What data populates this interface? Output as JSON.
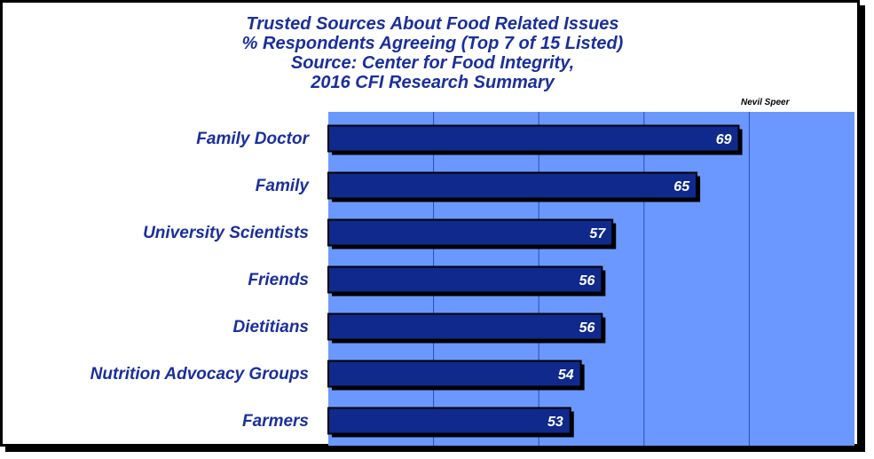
{
  "chart_data": {
    "type": "bar",
    "orientation": "horizontal",
    "title_lines": [
      "Trusted Sources About Food Related Issues",
      "% Respondents Agreeing (Top 7 of 15 Listed)",
      "Source:  Center for Food Integrity,",
      "2016 CFI Research Summary"
    ],
    "credit": "Nevil Speer",
    "categories": [
      "Family Doctor",
      "Family",
      "University Scientists",
      "Friends",
      "Dietitians",
      "Nutrition Advocacy Groups",
      "Farmers"
    ],
    "values": [
      69,
      65,
      57,
      56,
      56,
      54,
      53
    ],
    "xlim": [
      30,
      80
    ],
    "grid": true,
    "legend": "none",
    "colors": {
      "plot_background": "#6b98ff",
      "bar_fill": "#0f2a8c",
      "label_text": "#1a2f9c",
      "value_text": "#ffffff"
    }
  }
}
